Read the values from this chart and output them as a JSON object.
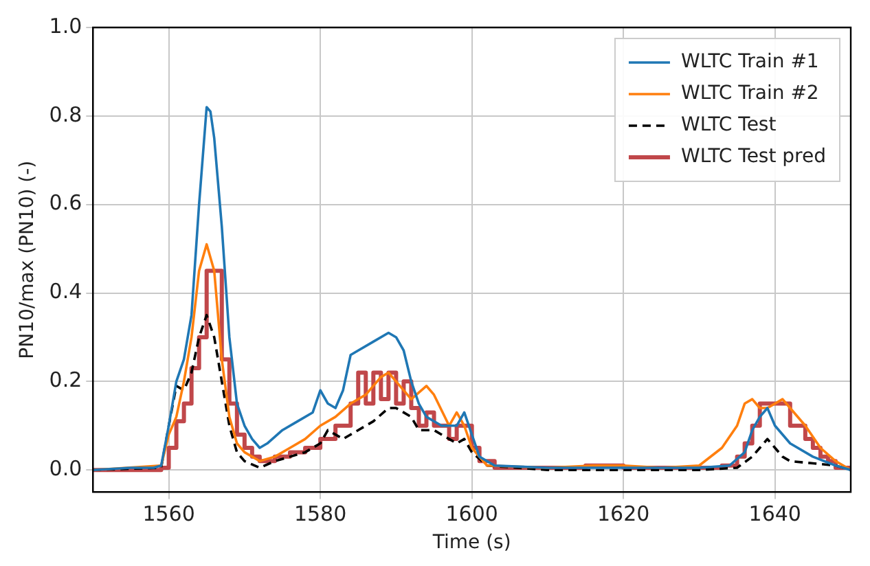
{
  "chart_data": {
    "type": "line",
    "xlabel": "Time (s)",
    "ylabel": "PN10/max (PN10) (-)",
    "xlim": [
      1550,
      1650
    ],
    "xticks": [
      1560,
      1580,
      1600,
      1620,
      1640
    ],
    "ylim": [
      -0.05,
      1.0
    ],
    "yticks": [
      {
        "value": 0,
        "label": "0.0"
      },
      {
        "value": 0.2,
        "label": "0.2"
      },
      {
        "value": 0.4,
        "label": "0.4"
      },
      {
        "value": 0.6,
        "label": "0.6"
      },
      {
        "value": 0.8,
        "label": "0.8"
      },
      {
        "value": 1.0,
        "label": "1.0"
      }
    ],
    "grid": true,
    "legend": "top right",
    "marker": "none",
    "series": [
      {
        "name": "WLTC Train #1",
        "color": "#1f77b4",
        "x": [
          1550,
          1555,
          1558,
          1559,
          1560,
          1561,
          1562,
          1563,
          1564,
          1565,
          1565.5,
          1566,
          1567,
          1568,
          1569,
          1570,
          1571,
          1572,
          1573,
          1575,
          1577,
          1579,
          1580,
          1581,
          1582,
          1583,
          1584,
          1585,
          1587,
          1589,
          1590,
          1591,
          1592,
          1593,
          1594,
          1596,
          1598,
          1599,
          1600,
          1601,
          1603,
          1610,
          1620,
          1630,
          1634,
          1636,
          1637,
          1638,
          1639,
          1640,
          1642,
          1645,
          1648,
          1650
        ],
        "values": [
          0,
          0.005,
          0.005,
          0.01,
          0.1,
          0.2,
          0.25,
          0.35,
          0.6,
          0.82,
          0.81,
          0.75,
          0.55,
          0.3,
          0.15,
          0.1,
          0.07,
          0.05,
          0.06,
          0.09,
          0.11,
          0.13,
          0.18,
          0.15,
          0.14,
          0.18,
          0.26,
          0.27,
          0.29,
          0.31,
          0.3,
          0.27,
          0.2,
          0.15,
          0.12,
          0.1,
          0.1,
          0.13,
          0.08,
          0.03,
          0.01,
          0.005,
          0.005,
          0.005,
          0.01,
          0.04,
          0.09,
          0.12,
          0.14,
          0.1,
          0.06,
          0.03,
          0.01,
          0
        ]
      },
      {
        "name": "WLTC Train #2",
        "color": "#ff7f0e",
        "x": [
          1550,
          1559,
          1560,
          1561,
          1562,
          1563,
          1564,
          1565,
          1566,
          1567,
          1568,
          1569,
          1570,
          1572,
          1574,
          1576,
          1578,
          1580,
          1582,
          1584,
          1586,
          1588,
          1589,
          1590,
          1592,
          1594,
          1595,
          1597,
          1598,
          1599,
          1600,
          1602,
          1610,
          1616,
          1620,
          1625,
          1630,
          1633,
          1635,
          1636,
          1637,
          1638,
          1639,
          1641,
          1642,
          1644,
          1646,
          1648,
          1650
        ],
        "values": [
          0,
          0.01,
          0.08,
          0.12,
          0.2,
          0.3,
          0.45,
          0.51,
          0.45,
          0.25,
          0.12,
          0.06,
          0.04,
          0.02,
          0.03,
          0.05,
          0.07,
          0.1,
          0.12,
          0.15,
          0.17,
          0.21,
          0.22,
          0.2,
          0.16,
          0.19,
          0.17,
          0.1,
          0.13,
          0.1,
          0.05,
          0.01,
          0.005,
          0.01,
          0.01,
          0.005,
          0.01,
          0.05,
          0.1,
          0.15,
          0.16,
          0.14,
          0.14,
          0.16,
          0.14,
          0.1,
          0.05,
          0.02,
          0
        ]
      },
      {
        "name": "WLTC Test",
        "color": "#000000",
        "line_style": "dashed",
        "x": [
          1550,
          1559,
          1560,
          1561,
          1562,
          1563,
          1564,
          1565,
          1566,
          1567,
          1568,
          1569,
          1570,
          1572,
          1574,
          1576,
          1578,
          1580,
          1581,
          1582,
          1583,
          1585,
          1587,
          1589,
          1590,
          1592,
          1593,
          1595,
          1597,
          1598,
          1599,
          1600,
          1602,
          1610,
          1630,
          1635,
          1637,
          1638,
          1639,
          1640,
          1641,
          1642,
          1645,
          1648,
          1650
        ],
        "values": [
          0,
          0.005,
          0.1,
          0.19,
          0.18,
          0.22,
          0.3,
          0.35,
          0.3,
          0.2,
          0.1,
          0.04,
          0.02,
          0.005,
          0.02,
          0.03,
          0.04,
          0.06,
          0.09,
          0.08,
          0.07,
          0.09,
          0.11,
          0.14,
          0.14,
          0.12,
          0.09,
          0.09,
          0.07,
          0.06,
          0.07,
          0.04,
          0.01,
          0,
          0,
          0.005,
          0.03,
          0.05,
          0.07,
          0.05,
          0.03,
          0.02,
          0.015,
          0.01,
          0
        ]
      },
      {
        "name": "WLTC Test pred",
        "type": "step",
        "color": "#c0474a",
        "x": [
          1550,
          1559,
          1560,
          1561,
          1562,
          1563,
          1564,
          1565,
          1566,
          1567,
          1568,
          1569,
          1570,
          1571,
          1572,
          1574,
          1576,
          1578,
          1580,
          1582,
          1584,
          1585,
          1586,
          1587,
          1588,
          1589,
          1590,
          1591,
          1592,
          1593,
          1594,
          1595,
          1597,
          1598,
          1600,
          1601,
          1603,
          1615,
          1620,
          1630,
          1633,
          1635,
          1636,
          1637,
          1638,
          1642,
          1644,
          1645,
          1646,
          1647,
          1648,
          1650
        ],
        "values": [
          0,
          0.005,
          0.05,
          0.11,
          0.15,
          0.23,
          0.3,
          0.45,
          0.45,
          0.25,
          0.15,
          0.08,
          0.05,
          0.03,
          0.02,
          0.03,
          0.04,
          0.05,
          0.07,
          0.1,
          0.15,
          0.22,
          0.15,
          0.22,
          0.16,
          0.22,
          0.15,
          0.2,
          0.14,
          0.1,
          0.13,
          0.1,
          0.07,
          0.1,
          0.05,
          0.02,
          0.005,
          0.01,
          0.005,
          0.005,
          0.01,
          0.03,
          0.06,
          0.1,
          0.15,
          0.1,
          0.07,
          0.05,
          0.03,
          0.02,
          0.005,
          0
        ]
      }
    ]
  }
}
